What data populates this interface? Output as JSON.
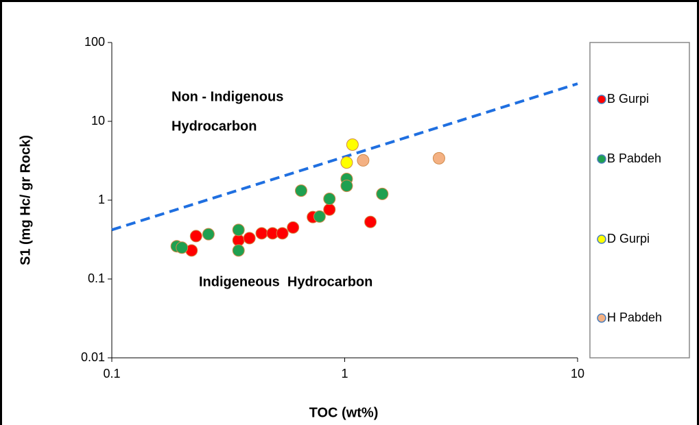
{
  "chart_data": {
    "type": "scatter",
    "xlabel": "TOC (wt%)",
    "ylabel": "S1 (mg Hc/ gr Rock)",
    "xscale": "log",
    "yscale": "log",
    "xlim": [
      0.1,
      10
    ],
    "ylim": [
      0.01,
      100
    ],
    "xticks": [
      0.1,
      1,
      10
    ],
    "yticks": [
      0.01,
      0.1,
      1,
      10,
      100
    ],
    "grid": false,
    "legend": "right",
    "annotations": [
      "Non - Indigenous",
      "Hydrocarbon",
      "Indigeneous  Hydrocarbon"
    ],
    "reference_line": {
      "x": [
        0.1,
        10
      ],
      "y": [
        0.42,
        30
      ],
      "color": "#1f6fe0",
      "dashed": true
    },
    "series": [
      {
        "name": "B Gurpi",
        "color": "#ff0000",
        "x": [
          0.22,
          0.23,
          0.35,
          0.39,
          0.44,
          0.49,
          0.54,
          0.6,
          0.73,
          0.86,
          1.29
        ],
        "values": [
          0.23,
          0.35,
          0.31,
          0.33,
          0.38,
          0.38,
          0.38,
          0.45,
          0.61,
          0.76,
          0.53
        ]
      },
      {
        "name": "B Pabdeh",
        "color": "#1fa050",
        "x": [
          0.19,
          0.2,
          0.26,
          0.35,
          0.35,
          0.65,
          0.78,
          0.86,
          1.02,
          1.02,
          1.45
        ],
        "values": [
          0.26,
          0.25,
          0.37,
          0.42,
          0.23,
          1.32,
          0.62,
          1.04,
          1.86,
          1.52,
          1.2
        ]
      },
      {
        "name": "D Gurpi",
        "color": "#ffff00",
        "x": [
          1.02,
          1.08
        ],
        "values": [
          3.0,
          5.06
        ]
      },
      {
        "name": "H Pabdeh",
        "color": "#f4b183",
        "x": [
          1.2,
          2.54
        ],
        "values": [
          3.2,
          3.4
        ]
      }
    ]
  }
}
